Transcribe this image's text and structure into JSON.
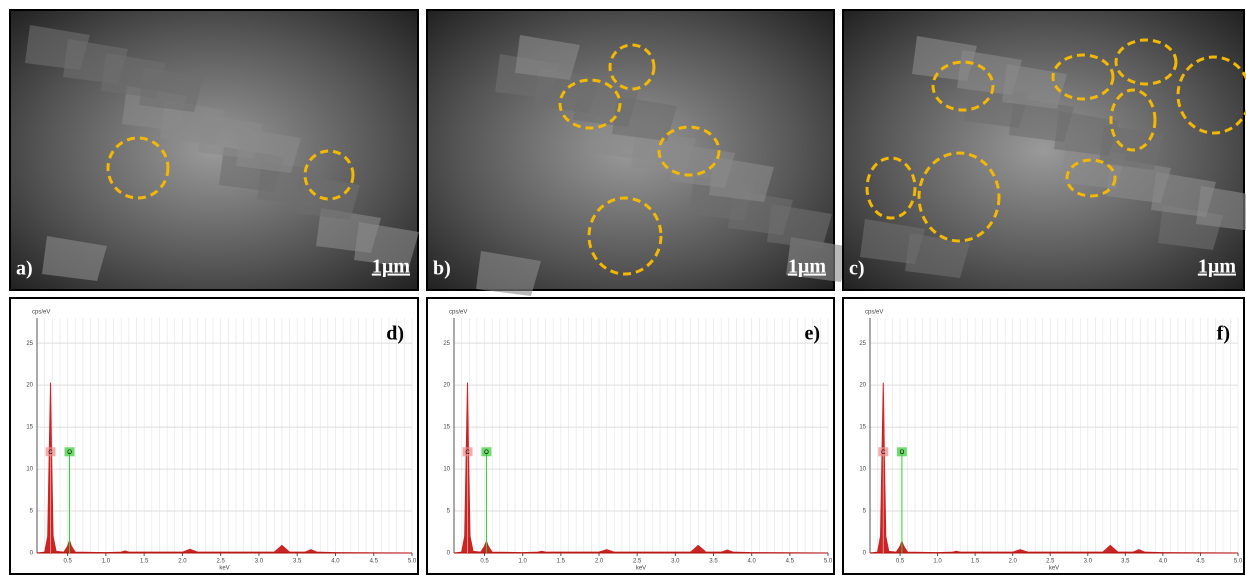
{
  "panels": [
    {
      "label": "a)",
      "scale_bar": "1µm"
    },
    {
      "label": "b)",
      "scale_bar": "1µm"
    },
    {
      "label": "c)",
      "scale_bar": "1µm"
    }
  ],
  "chart_data": [
    {
      "type": "area",
      "label": "d)",
      "ylabel": "cps/eV",
      "xlabel": "keV",
      "color": "#c00000",
      "grid": true,
      "xlim": [
        0.1,
        5.0
      ],
      "ylim": [
        0,
        28
      ],
      "xticks": [
        0.5,
        {
          "value": 1,
          "label": "1.0"
        },
        1.5,
        {
          "value": 2,
          "label": "2.0"
        },
        2.5,
        {
          "value": 3,
          "label": "3.0"
        },
        3.5,
        {
          "value": 4,
          "label": "4.0"
        },
        4.5,
        {
          "value": 5,
          "label": "5.0"
        }
      ],
      "yticks": [
        0,
        5,
        10,
        15,
        20,
        25
      ],
      "markers": [
        {
          "label": "C",
          "x": 0.277,
          "color": "#e88"
        },
        {
          "label": "O",
          "x": 0.525,
          "color": "#3c3"
        }
      ],
      "x": [
        0.1,
        0.2,
        0.24,
        0.26,
        0.277,
        0.29,
        0.31,
        0.35,
        0.45,
        0.5,
        0.525,
        0.55,
        0.6,
        1.0,
        1.2,
        1.25,
        1.3,
        2.0,
        2.1,
        2.2,
        3.2,
        3.3,
        3.4,
        3.6,
        3.68,
        3.76,
        4.0,
        5.0
      ],
      "values": [
        0,
        0.1,
        2,
        12,
        20.3,
        12,
        2,
        0.2,
        0.1,
        0.8,
        1.5,
        0.8,
        0.1,
        0.05,
        0.1,
        0.25,
        0.1,
        0.1,
        0.45,
        0.1,
        0.1,
        0.9,
        0.1,
        0.1,
        0.4,
        0.1,
        0.05,
        0
      ]
    },
    {
      "type": "area",
      "label": "e)",
      "ylabel": "cps/eV",
      "xlabel": "keV",
      "color": "#c00000",
      "grid": true,
      "xlim": [
        0.1,
        5.0
      ],
      "ylim": [
        0,
        28
      ],
      "xticks": [
        0.5,
        {
          "value": 1,
          "label": "1.0"
        },
        1.5,
        {
          "value": 2,
          "label": "2.0"
        },
        2.5,
        {
          "value": 3,
          "label": "3.0"
        },
        3.5,
        {
          "value": 4,
          "label": "4.0"
        },
        4.5,
        {
          "value": 5,
          "label": "5.0"
        }
      ],
      "yticks": [
        0,
        5,
        10,
        15,
        20,
        25
      ],
      "markers": [
        {
          "label": "C",
          "x": 0.277,
          "color": "#e88"
        },
        {
          "label": "O",
          "x": 0.525,
          "color": "#3c3"
        }
      ],
      "x": [
        0.1,
        0.2,
        0.24,
        0.26,
        0.277,
        0.29,
        0.31,
        0.35,
        0.45,
        0.5,
        0.525,
        0.55,
        0.6,
        1.0,
        1.2,
        1.25,
        1.3,
        2.0,
        2.1,
        2.2,
        3.2,
        3.3,
        3.4,
        3.6,
        3.68,
        3.76,
        4.0,
        5.0
      ],
      "values": [
        0,
        0.1,
        2,
        12,
        20.3,
        12,
        2,
        0.2,
        0.1,
        0.8,
        1.4,
        0.8,
        0.1,
        0.05,
        0.1,
        0.2,
        0.1,
        0.1,
        0.4,
        0.1,
        0.1,
        0.9,
        0.1,
        0.1,
        0.35,
        0.1,
        0.05,
        0
      ]
    },
    {
      "type": "area",
      "label": "f)",
      "ylabel": "cps/eV",
      "xlabel": "keV",
      "color": "#c00000",
      "grid": true,
      "xlim": [
        0.1,
        5.0
      ],
      "ylim": [
        0,
        28
      ],
      "xticks": [
        0.5,
        {
          "value": 1,
          "label": "1.0"
        },
        1.5,
        {
          "value": 2,
          "label": "2.0"
        },
        2.5,
        {
          "value": 3,
          "label": "3.0"
        },
        3.5,
        {
          "value": 4,
          "label": "4.0"
        },
        4.5,
        {
          "value": 5,
          "label": "5.0"
        }
      ],
      "yticks": [
        0,
        5,
        10,
        15,
        20,
        25
      ],
      "markers": [
        {
          "label": "C",
          "x": 0.277,
          "color": "#e88"
        },
        {
          "label": "O",
          "x": 0.525,
          "color": "#3c3"
        }
      ],
      "x": [
        0.1,
        0.2,
        0.24,
        0.26,
        0.277,
        0.29,
        0.31,
        0.35,
        0.45,
        0.5,
        0.525,
        0.55,
        0.6,
        1.0,
        1.2,
        1.25,
        1.3,
        2.0,
        2.1,
        2.2,
        3.2,
        3.3,
        3.4,
        3.6,
        3.68,
        3.76,
        4.0,
        5.0
      ],
      "values": [
        0,
        0.1,
        2,
        12,
        20.3,
        12,
        2,
        0.2,
        0.1,
        0.8,
        1.4,
        0.8,
        0.1,
        0.05,
        0.1,
        0.2,
        0.1,
        0.1,
        0.4,
        0.1,
        0.1,
        0.9,
        0.1,
        0.1,
        0.4,
        0.1,
        0.05,
        0
      ]
    }
  ]
}
